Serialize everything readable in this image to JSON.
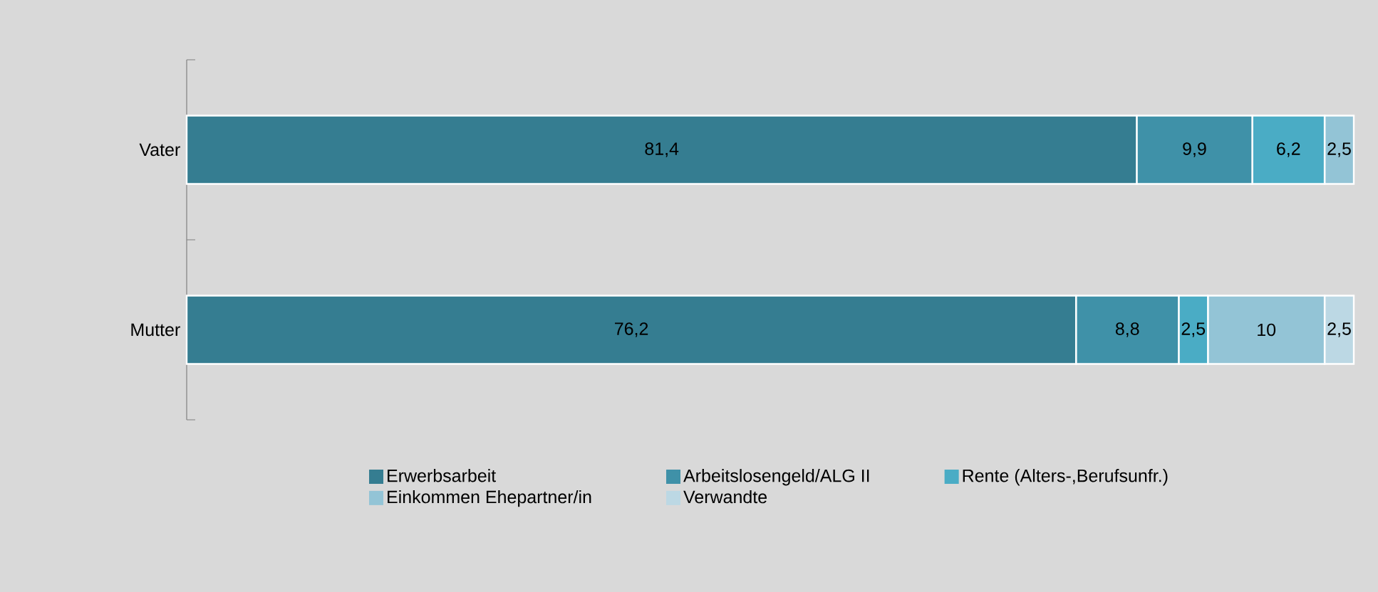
{
  "chart_data": {
    "type": "bar",
    "orientation": "horizontal",
    "stacked": true,
    "legend": "bottom",
    "categories": [
      "Vater",
      "Mutter"
    ],
    "series": [
      {
        "name": "Erwerbsarbeit",
        "color": "#357d91",
        "values": [
          81.4,
          76.2
        ],
        "value_labels": [
          "81,4",
          "76,2"
        ]
      },
      {
        "name": "Arbeitslosengeld/ALG II",
        "color": "#3f91a8",
        "values": [
          9.9,
          8.8
        ],
        "value_labels": [
          "9,9",
          "8,8"
        ]
      },
      {
        "name": "Rente (Alters-,Berufsunfr.)",
        "color": "#4aacc5",
        "values": [
          6.2,
          2.5
        ],
        "value_labels": [
          "6,2",
          "2,5"
        ]
      },
      {
        "name": "Einkommen Ehepartner/in",
        "color": "#93c4d6",
        "values": [
          2.5,
          10
        ],
        "value_labels": [
          "2,5",
          "10"
        ]
      },
      {
        "name": "Verwandte",
        "color": "#bcd8e4",
        "values": [
          null,
          2.5
        ],
        "value_labels": [
          null,
          "2,5"
        ]
      }
    ]
  }
}
